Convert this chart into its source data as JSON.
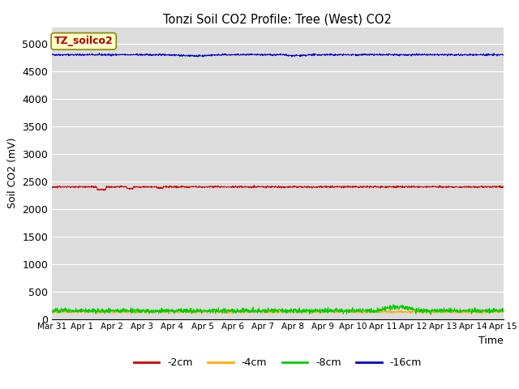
{
  "title": "Tonzi Soil CO2 Profile: Tree (West) CO2",
  "ylabel": "Soil CO2 (mV)",
  "xlabel": "Time",
  "watermark_text": "TZ_soilco2",
  "x_start_days": 0,
  "x_end_days": 15.0,
  "ylim": [
    0,
    5300
  ],
  "yticks": [
    0,
    500,
    1000,
    1500,
    2000,
    2500,
    3000,
    3500,
    4000,
    4500,
    5000
  ],
  "background_color": "#dcdcdc",
  "series": {
    "-2cm": {
      "color": "#cc0000",
      "value": 2400,
      "noise": 8
    },
    "-4cm": {
      "color": "#ffaa00",
      "value": 130,
      "noise": 10
    },
    "-8cm": {
      "color": "#00cc00",
      "value": 150,
      "noise": 20
    },
    "-16cm": {
      "color": "#0000cc",
      "value": 4800,
      "noise": 8
    }
  },
  "x_tick_labels": [
    "Mar 31",
    "Apr 1",
    "Apr 2",
    "Apr 3",
    "Apr 4",
    "Apr 5",
    "Apr 6",
    "Apr 7",
    "Apr 8",
    "Apr 9",
    "Apr 10",
    "Apr 11",
    "Apr 12",
    "Apr 13",
    "Apr 14",
    "Apr 15"
  ],
  "x_tick_positions": [
    0,
    1,
    2,
    3,
    4,
    5,
    6,
    7,
    8,
    9,
    10,
    11,
    12,
    13,
    14,
    15
  ],
  "n_points": 2000,
  "legend_entries": [
    "-2cm",
    "-4cm",
    "-8cm",
    "-16cm"
  ],
  "legend_colors": [
    "#cc0000",
    "#ffaa00",
    "#00cc00",
    "#0000cc"
  ]
}
